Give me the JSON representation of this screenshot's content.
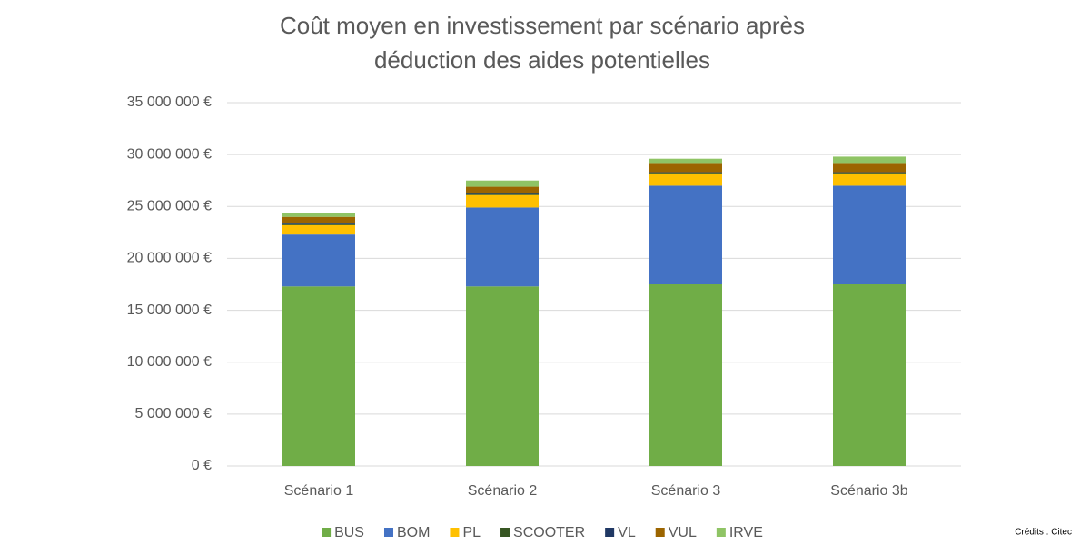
{
  "chart_data": {
    "type": "stacked_bar",
    "title": [
      "Coût moyen en investissement par scénario après",
      "déduction des aides potentielles"
    ],
    "categories": [
      "Scénario 1",
      "Scénario 2",
      "Scénario 3",
      "Scénario 3b"
    ],
    "series": [
      {
        "name": "BUS",
        "color": "#70ad47",
        "values": [
          17300000,
          17300000,
          17500000,
          17500000
        ]
      },
      {
        "name": "BOM",
        "color": "#4472c4",
        "values": [
          5000000,
          7600000,
          9500000,
          9500000
        ]
      },
      {
        "name": "PL",
        "color": "#ffc000",
        "values": [
          900000,
          1200000,
          1100000,
          1100000
        ]
      },
      {
        "name": "SCOOTER",
        "color": "#375623",
        "values": [
          100000,
          100000,
          100000,
          100000
        ]
      },
      {
        "name": "VL",
        "color": "#203864",
        "values": [
          100000,
          100000,
          100000,
          100000
        ]
      },
      {
        "name": "VUL",
        "color": "#9c6500",
        "values": [
          600000,
          600000,
          800000,
          800000
        ]
      },
      {
        "name": "IRVE",
        "color": "#8fc465",
        "values": [
          400000,
          600000,
          500000,
          700000
        ]
      }
    ],
    "ylim": [
      0,
      35000000
    ],
    "yticks": [
      {
        "value": 0,
        "label": "0 €"
      },
      {
        "value": 5000000,
        "label": "5 000 000 €"
      },
      {
        "value": 10000000,
        "label": "10 000 000 €"
      },
      {
        "value": 15000000,
        "label": "15 000 000 €"
      },
      {
        "value": 20000000,
        "label": "20 000 000 €"
      },
      {
        "value": 25000000,
        "label": "25 000 000 €"
      },
      {
        "value": 30000000,
        "label": "30 000 000 €"
      },
      {
        "value": 35000000,
        "label": "35 000 000 €"
      }
    ],
    "grid": true,
    "legend": "bottom",
    "credits": "Crédits : Citec"
  }
}
